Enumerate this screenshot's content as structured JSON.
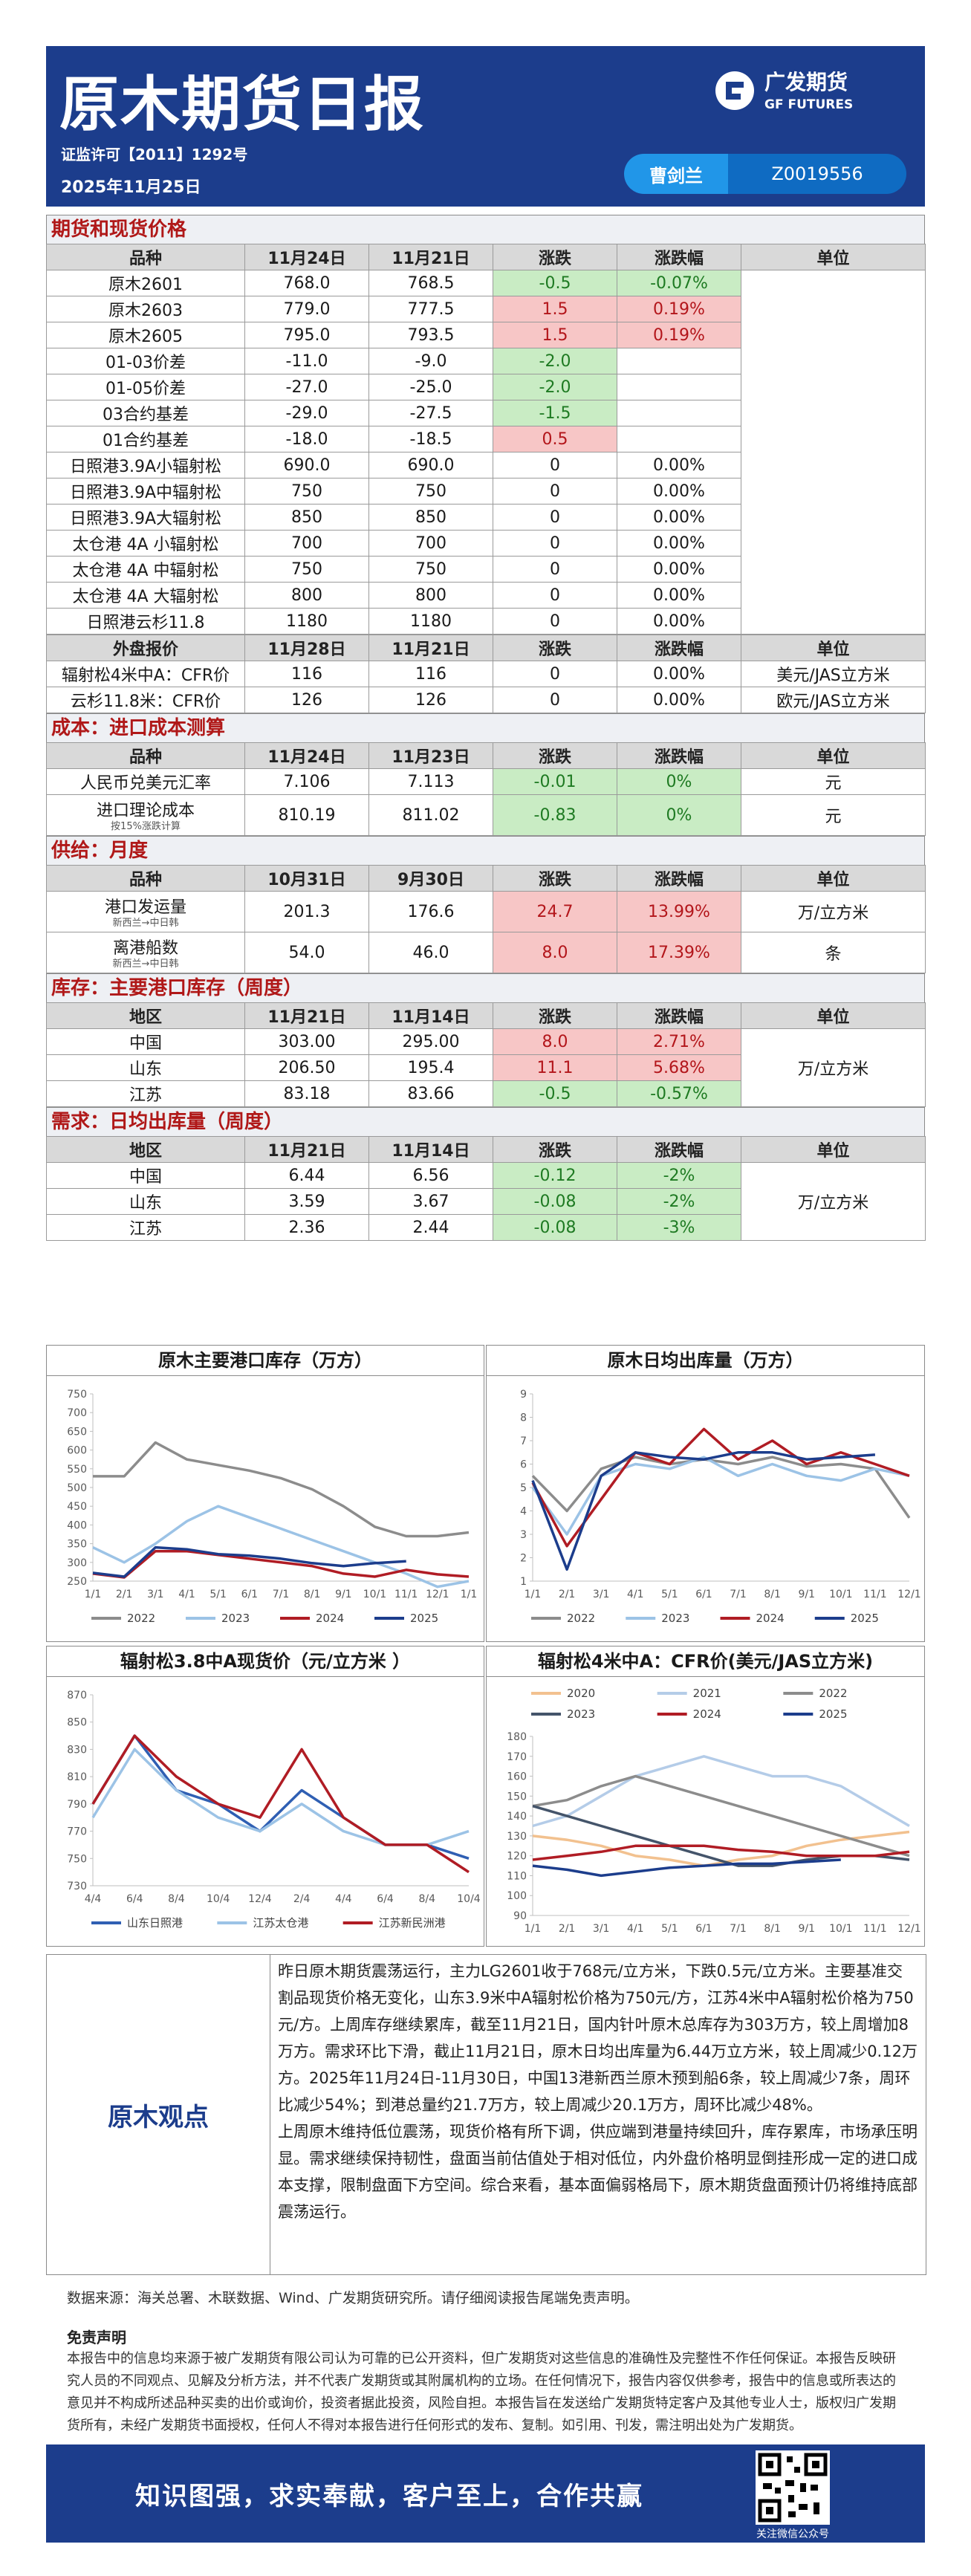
{
  "header": {
    "title": "原木期货日报",
    "license": "证监许可【2011】1292号",
    "date": "2025年11月25日",
    "analyst": "曹剑兰",
    "analyst_id": "Z0019556",
    "logo_cn": "广发期货",
    "logo_en": "GF FUTURES"
  },
  "tables": [
    {
      "title": "期货和现货价格",
      "columns": [
        "品种",
        "11月24日",
        "11月21日",
        "涨跌",
        "涨跌幅",
        "单位"
      ],
      "rows": [
        {
          "name": "原木2601",
          "values": [
            "768.0",
            "768.5",
            "-0.5",
            "-0.07%"
          ]
        },
        {
          "name": "原木2603",
          "values": [
            "779.0",
            "777.5",
            "1.5",
            "0.19%"
          ]
        },
        {
          "name": "原木2605",
          "values": [
            "795.0",
            "793.5",
            "1.5",
            "0.19%"
          ]
        },
        {
          "name": "01-03价差",
          "values": [
            "-11.0",
            "-9.0",
            "-2.0",
            null
          ]
        },
        {
          "name": "01-05价差",
          "values": [
            "-27.0",
            "-25.0",
            "-2.0",
            null
          ]
        },
        {
          "name": "03合约基差",
          "values": [
            "-29.0",
            "-27.5",
            "-1.5",
            null
          ]
        },
        {
          "name": "01合约基差",
          "values": [
            "-18.0",
            "-18.5",
            "0.5",
            null
          ]
        },
        {
          "name": "日照港3.9A小辐射松",
          "values": [
            "690.0",
            "690.0",
            "0",
            "0.00%"
          ]
        },
        {
          "name": "日照港3.9A中辐射松",
          "values": [
            "750",
            "750",
            "0",
            "0.00%"
          ]
        },
        {
          "name": "日照港3.9A大辐射松",
          "values": [
            "850",
            "850",
            "0",
            "0.00%"
          ]
        },
        {
          "name": "太仓港 4A 小辐射松",
          "values": [
            "700",
            "700",
            "0",
            "0.00%"
          ]
        },
        {
          "name": "太仓港 4A 中辐射松",
          "values": [
            "750",
            "750",
            "0",
            "0.00%"
          ]
        },
        {
          "name": "太仓港 4A 大辐射松",
          "values": [
            "800",
            "800",
            "0",
            "0.00%"
          ]
        },
        {
          "name": "日照港云杉11.8",
          "values": [
            "1180",
            "1180",
            "0",
            "0.00%"
          ]
        }
      ]
    },
    {
      "columns": [
        "外盘报价",
        "11月28日",
        "11月21日",
        "涨跌",
        "涨跌幅",
        "单位"
      ],
      "rows": [
        {
          "name": "辐射松4米中A：CFR价",
          "values": [
            "116",
            "116",
            "0",
            "0.00%"
          ],
          "unit": "美元/JAS立方米"
        },
        {
          "name": "云杉11.8米：CFR价",
          "values": [
            "126",
            "126",
            "0",
            "0.00%"
          ],
          "unit": "欧元/JAS立方米"
        }
      ]
    },
    {
      "title": "成本：进口成本测算",
      "columns": [
        "品种",
        "11月24日",
        "11月23日",
        "涨跌",
        "涨跌幅",
        "单位"
      ],
      "rows": [
        {
          "name": "人民币兑美元汇率",
          "values": [
            "7.106",
            "7.113",
            "-0.01",
            "0%"
          ],
          "unit": "元"
        },
        {
          "name": "进口理论成本",
          "note": "按15%涨跌计算",
          "values": [
            "810.19",
            "811.02",
            "-0.83",
            "0%"
          ],
          "unit": "元"
        }
      ]
    },
    {
      "title": "供给：月度",
      "columns": [
        "品种",
        "10月31日",
        "9月30日",
        "涨跌",
        "涨跌幅",
        "单位"
      ],
      "rows": [
        {
          "name": "港口发运量",
          "note": "新西兰→中日韩",
          "values": [
            "201.3",
            "176.6",
            "24.7",
            "13.99%"
          ],
          "unit": "万/立方米"
        },
        {
          "name": "离港船数",
          "note": "新西兰→中日韩",
          "values": [
            "54.0",
            "46.0",
            "8.0",
            "17.39%"
          ],
          "unit": "条"
        }
      ]
    },
    {
      "title": "库存：主要港口库存（周度）",
      "columns": [
        "地区",
        "11月21日",
        "11月14日",
        "涨跌",
        "涨跌幅",
        "单位"
      ],
      "unit": "万/立方米",
      "rows": [
        {
          "name": "中国",
          "values": [
            "303.00",
            "295.00",
            "8.0",
            "2.71%"
          ]
        },
        {
          "name": "山东",
          "values": [
            "206.50",
            "195.4",
            "11.1",
            "5.68%"
          ]
        },
        {
          "name": "江苏",
          "values": [
            "83.18",
            "83.66",
            "-0.5",
            "-0.57%"
          ]
        }
      ]
    },
    {
      "title": "需求：日均出库量（周度）",
      "columns": [
        "地区",
        "11月21日",
        "11月14日",
        "涨跌",
        "涨跌幅",
        "单位"
      ],
      "unit": "万/立方米",
      "rows": [
        {
          "name": "中国",
          "values": [
            "6.44",
            "6.56",
            "-0.12",
            "-2%"
          ]
        },
        {
          "name": "山东",
          "values": [
            "3.59",
            "3.67",
            "-0.08",
            "-2%"
          ]
        },
        {
          "name": "江苏",
          "values": [
            "2.36",
            "2.44",
            "-0.08",
            "-3%"
          ]
        }
      ]
    }
  ],
  "charts": [
    {
      "type": "line",
      "title": "原木主要港口库存（万方）",
      "legend": "bottom",
      "categories": [
        "1/1",
        "2/1",
        "3/1",
        "4/1",
        "5/1",
        "6/1",
        "7/1",
        "8/1",
        "9/1",
        "10/1",
        "11/1",
        "12/1",
        "1/1"
      ],
      "ylim": [
        250,
        750
      ],
      "yticks": [
        250,
        300,
        350,
        400,
        450,
        500,
        550,
        600,
        650,
        700,
        750
      ],
      "series": [
        {
          "name": "2022",
          "color": "#8c8c8c",
          "values": [
            530,
            530,
            620,
            575,
            560,
            545,
            525,
            495,
            450,
            395,
            370,
            370,
            380
          ]
        },
        {
          "name": "2023",
          "color": "#9cc3e6",
          "values": [
            340,
            300,
            350,
            410,
            450,
            420,
            390,
            360,
            330,
            300,
            270,
            235,
            250
          ]
        },
        {
          "name": "2024",
          "color": "#b01c24",
          "values": [
            270,
            260,
            330,
            330,
            320,
            310,
            300,
            290,
            270,
            262,
            280,
            268,
            262
          ]
        },
        {
          "name": "2025",
          "color": "#1c3d8c",
          "values": [
            272,
            262,
            340,
            335,
            322,
            318,
            310,
            298,
            290,
            298,
            303,
            null,
            null
          ]
        }
      ]
    },
    {
      "type": "line",
      "title": "原木日均出库量（万方）",
      "legend": "bottom",
      "categories": [
        "1/1",
        "2/1",
        "3/1",
        "4/1",
        "5/1",
        "6/1",
        "7/1",
        "8/1",
        "9/1",
        "10/1",
        "11/1",
        "12/1"
      ],
      "ylim": [
        1,
        9
      ],
      "yticks": [
        1,
        2,
        3,
        4,
        5,
        6,
        7,
        8,
        9
      ],
      "series": [
        {
          "name": "2022",
          "color": "#8c8c8c",
          "values": [
            5.5,
            4.0,
            5.8,
            6.3,
            6.0,
            6.2,
            6.0,
            6.3,
            5.9,
            6.0,
            5.8,
            3.7
          ]
        },
        {
          "name": "2023",
          "color": "#9cc3e6",
          "values": [
            5.0,
            3.0,
            5.5,
            6.0,
            5.8,
            6.3,
            5.5,
            6.0,
            5.5,
            5.3,
            5.8,
            5.5
          ]
        },
        {
          "name": "2024",
          "color": "#b01c24",
          "values": [
            5.2,
            2.5,
            4.5,
            6.5,
            6.0,
            7.5,
            6.2,
            7.0,
            6.0,
            6.5,
            6.0,
            5.5
          ]
        },
        {
          "name": "2025",
          "color": "#1c3d8c",
          "values": [
            5.3,
            1.5,
            5.5,
            6.5,
            6.3,
            6.2,
            6.5,
            6.5,
            6.2,
            6.3,
            6.4,
            null
          ]
        }
      ]
    },
    {
      "type": "line",
      "title": "辐射松3.8中A现货价（元/立方米 ）",
      "legend": "bottom",
      "categories": [
        "4/4",
        "6/4",
        "8/4",
        "10/4",
        "12/4",
        "2/4",
        "4/4",
        "6/4",
        "8/4",
        "10/4"
      ],
      "ylim": [
        730,
        870
      ],
      "yticks": [
        730,
        750,
        770,
        790,
        810,
        830,
        850,
        870
      ],
      "series": [
        {
          "name": "山东日照港",
          "color": "#2f5fb3",
          "values": [
            790,
            840,
            800,
            790,
            770,
            800,
            780,
            760,
            760,
            750
          ]
        },
        {
          "name": "江苏太仓港",
          "color": "#9cc3e6",
          "values": [
            780,
            830,
            800,
            780,
            770,
            790,
            770,
            760,
            760,
            770
          ]
        },
        {
          "name": "江苏新民洲港",
          "color": "#b01c24",
          "values": [
            790,
            840,
            810,
            790,
            780,
            830,
            780,
            760,
            760,
            740
          ]
        }
      ]
    },
    {
      "type": "line",
      "title": "辐射松4米中A：CFR价(美元/JAS立方米)",
      "legend": "top",
      "categories": [
        "1/1",
        "2/1",
        "3/1",
        "4/1",
        "5/1",
        "6/1",
        "7/1",
        "8/1",
        "9/1",
        "10/1",
        "11/1",
        "12/1"
      ],
      "ylim": [
        90,
        180
      ],
      "yticks": [
        90,
        100,
        110,
        120,
        130,
        140,
        150,
        160,
        170,
        180
      ],
      "series": [
        {
          "name": "2020",
          "color": "#f2c18f",
          "values": [
            130,
            128,
            125,
            120,
            118,
            115,
            118,
            120,
            125,
            128,
            130,
            132
          ]
        },
        {
          "name": "2021",
          "color": "#b4cce8",
          "values": [
            135,
            140,
            150,
            160,
            165,
            170,
            165,
            160,
            160,
            155,
            145,
            135
          ]
        },
        {
          "name": "2022",
          "color": "#8c8c8c",
          "values": [
            145,
            148,
            155,
            160,
            155,
            150,
            145,
            140,
            135,
            130,
            125,
            120
          ]
        },
        {
          "name": "2023",
          "color": "#44546a",
          "values": [
            145,
            140,
            135,
            130,
            125,
            120,
            115,
            115,
            118,
            120,
            120,
            118
          ]
        },
        {
          "name": "2024",
          "color": "#b01c24",
          "values": [
            118,
            120,
            122,
            125,
            125,
            125,
            123,
            122,
            120,
            120,
            120,
            122
          ]
        },
        {
          "name": "2025",
          "color": "#1c3d8c",
          "values": [
            115,
            113,
            110,
            112,
            114,
            115,
            116,
            116,
            117,
            118,
            null,
            null
          ]
        }
      ]
    }
  ],
  "viewpoint": {
    "label": "原木观点",
    "paragraphs": [
      "昨日原木期货震荡运行，主力LG2601收于768元/立方米，下跌0.5元/立方米。主要基准交割品现货价格无变化，山东3.9米中A辐射松价格为750元/方，江苏4米中A辐射松价格为750元/方。上周库存继续累库，截至11月21日，国内针叶原木总库存为303万方，较上周增加8万方。需求环比下滑，截止11月21日，原木日均出库量为6.44万立方米，较上周减少0.12万方。2025年11月24日-11月30日，中国13港新西兰原木预到船6条，较上周减少7条，周环比减少54%；到港总量约21.7万方，较上周减少20.1万方，周环比减少48%。",
      "上周原木维持低位震荡，现货价格有所下调，供应端到港量持续回升，库存累库，市场承压明显。需求继续保持韧性，盘面当前估值处于相对低位，内外盘价格明显倒挂形成一定的进口成本支撑，限制盘面下方空间。综合来看，基本面偏弱格局下，原木期货盘面预计仍将维持底部震荡运行。"
    ]
  },
  "footer": {
    "source": "数据来源：海关总署、木联数据、Wind、广发期货研究所。请仔细阅读报告尾端免责声明。",
    "disclaimer_title": "免责声明",
    "disclaimer": "本报告中的信息均来源于被广发期货有限公司认为可靠的已公开资料，但广发期货对这些信息的准确性及完整性不作任何保证。本报告反映研究人员的不同观点、见解及分析方法，并不代表广发期货或其附属机构的立场。在任何情况下，报告内容仅供参考，报告中的信息或所表达的意见并不构成所述品种买卖的出价或询价，投资者据此投资，风险自担。本报告旨在发送给广发期货特定客户及其他专业人士，版权归广发期货所有，未经广发期货书面授权，任何人不得对本报告进行任何形式的发布、复制。如引用、刊发，需注明出处为广发期货。",
    "slogan": "知识图强，求实奉献，客户至上，合作共赢",
    "qr_label": "关注微信公众号"
  }
}
